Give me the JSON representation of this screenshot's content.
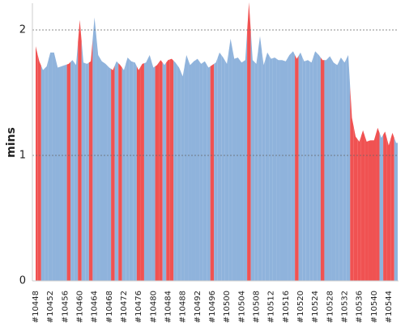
{
  "chart_data": {
    "type": "area",
    "y_label": "mins",
    "categories": [
      "#10448",
      null,
      null,
      null,
      "#10452",
      null,
      null,
      null,
      "#10456",
      null,
      null,
      null,
      "#10460",
      null,
      null,
      null,
      "#10464",
      null,
      null,
      null,
      "#10468",
      null,
      null,
      null,
      "#10472",
      null,
      null,
      null,
      "#10476",
      null,
      null,
      null,
      "#10480",
      null,
      null,
      null,
      "#10484",
      null,
      null,
      null,
      "#10488",
      null,
      null,
      null,
      "#10492",
      null,
      null,
      null,
      "#10496",
      null,
      null,
      null,
      "#10500",
      null,
      null,
      null,
      "#10504",
      null,
      null,
      null,
      "#10508",
      null,
      null,
      null,
      "#10512",
      null,
      null,
      null,
      "#10516",
      null,
      null,
      null,
      "#10520",
      null,
      null,
      null,
      "#10524",
      null,
      null,
      null,
      "#10528",
      null,
      null,
      null,
      "#10532",
      null,
      null,
      null,
      "#10536",
      null,
      null,
      null,
      "#10540",
      null,
      null,
      null,
      "#10544",
      null,
      null
    ],
    "values": [
      1.87,
      1.75,
      1.68,
      1.71,
      1.82,
      1.82,
      1.7,
      1.71,
      1.72,
      1.73,
      1.76,
      1.72,
      2.08,
      1.74,
      1.73,
      1.75,
      2.1,
      1.8,
      1.75,
      1.73,
      1.7,
      1.68,
      1.75,
      1.72,
      1.68,
      1.78,
      1.75,
      1.74,
      1.68,
      1.73,
      1.74,
      1.8,
      1.7,
      1.72,
      1.76,
      1.72,
      1.76,
      1.77,
      1.74,
      1.7,
      1.63,
      1.8,
      1.72,
      1.75,
      1.77,
      1.73,
      1.75,
      1.7,
      1.72,
      1.74,
      1.82,
      1.78,
      1.73,
      1.93,
      1.77,
      1.78,
      1.74,
      1.76,
      2.22,
      1.76,
      1.73,
      1.95,
      1.72,
      1.82,
      1.77,
      1.78,
      1.76,
      1.76,
      1.75,
      1.8,
      1.83,
      1.77,
      1.82,
      1.75,
      1.76,
      1.74,
      1.83,
      1.8,
      1.76,
      1.76,
      1.79,
      1.74,
      1.72,
      1.78,
      1.74,
      1.8,
      1.3,
      1.15,
      1.11,
      1.2,
      1.11,
      1.12,
      1.12,
      1.22,
      1.14,
      1.19,
      1.08,
      1.18,
      1.1
    ],
    "colors": [
      "#f05252",
      "#f05252",
      "#8fb3dc",
      "#8fb3dc",
      "#8fb3dc",
      "#8fb3dc",
      "#8fb3dc",
      "#8fb3dc",
      "#8fb3dc",
      "#f05252",
      "#8fb3dc",
      "#8fb3dc",
      "#f05252",
      "#8fb3dc",
      "#8fb3dc",
      "#f05252",
      "#8fb3dc",
      "#8fb3dc",
      "#8fb3dc",
      "#8fb3dc",
      "#8fb3dc",
      "#f05252",
      "#8fb3dc",
      "#f05252",
      "#8fb3dc",
      "#8fb3dc",
      "#8fb3dc",
      "#8fb3dc",
      "#f05252",
      "#f05252",
      "#8fb3dc",
      "#8fb3dc",
      "#8fb3dc",
      "#f05252",
      "#f05252",
      "#8fb3dc",
      "#f05252",
      "#f05252",
      "#8fb3dc",
      "#8fb3dc",
      "#8fb3dc",
      "#8fb3dc",
      "#8fb3dc",
      "#8fb3dc",
      "#8fb3dc",
      "#8fb3dc",
      "#8fb3dc",
      "#8fb3dc",
      "#f05252",
      "#8fb3dc",
      "#8fb3dc",
      "#8fb3dc",
      "#8fb3dc",
      "#8fb3dc",
      "#8fb3dc",
      "#8fb3dc",
      "#8fb3dc",
      "#8fb3dc",
      "#f05252",
      "#8fb3dc",
      "#8fb3dc",
      "#8fb3dc",
      "#8fb3dc",
      "#8fb3dc",
      "#8fb3dc",
      "#8fb3dc",
      "#8fb3dc",
      "#8fb3dc",
      "#8fb3dc",
      "#8fb3dc",
      "#8fb3dc",
      "#f05252",
      "#8fb3dc",
      "#8fb3dc",
      "#8fb3dc",
      "#8fb3dc",
      "#8fb3dc",
      "#8fb3dc",
      "#f05252",
      "#8fb3dc",
      "#8fb3dc",
      "#8fb3dc",
      "#8fb3dc",
      "#8fb3dc",
      "#8fb3dc",
      "#8fb3dc",
      "#f05252",
      "#f05252",
      "#f05252",
      "#f05252",
      "#f05252",
      "#f05252",
      "#f05252",
      "#f05252",
      "#8fb3dc",
      "#f05252",
      "#f05252",
      "#f05252",
      "#8fb3dc"
    ],
    "ylim": [
      0,
      2.2
    ],
    "yticks": [
      0,
      1,
      2
    ],
    "grid": true
  }
}
